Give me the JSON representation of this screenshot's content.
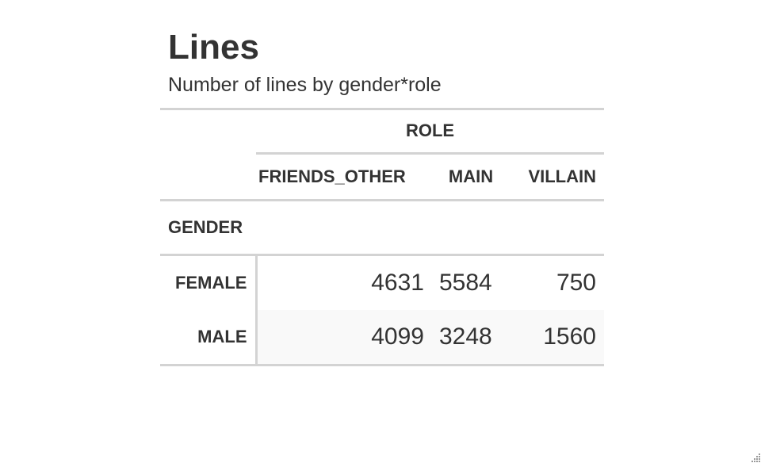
{
  "title": "Lines",
  "subtitle": "Number of lines by gender*role",
  "table": {
    "spanner_label": "ROLE",
    "columns": [
      "FRIENDS_OTHER",
      "MAIN",
      "VILLAIN"
    ],
    "row_group_label": "GENDER",
    "rows": [
      {
        "label": "FEMALE",
        "values": [
          "4631",
          "5584",
          "750"
        ]
      },
      {
        "label": "MALE",
        "values": [
          "4099",
          "3248",
          "1560"
        ]
      }
    ]
  },
  "chart_data": {
    "type": "table",
    "title": "Lines",
    "subtitle": "Number of lines by gender*role",
    "column_spanner": "ROLE",
    "row_group": "GENDER",
    "columns": [
      "FRIENDS_OTHER",
      "MAIN",
      "VILLAIN"
    ],
    "rows": [
      "FEMALE",
      "MALE"
    ],
    "values": [
      [
        4631,
        5584,
        750
      ],
      [
        4099,
        3248,
        1560
      ]
    ],
    "colors": {
      "rule": "#d3d3d3",
      "stripe": "#f9f9f9",
      "text": "#333333"
    }
  }
}
